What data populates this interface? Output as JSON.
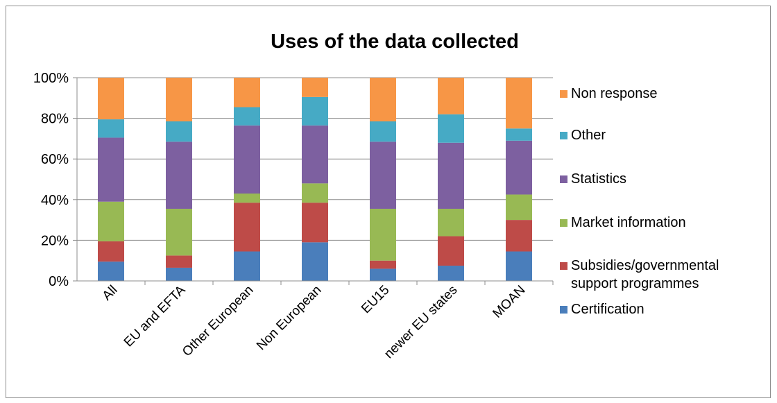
{
  "chart_data": {
    "type": "bar",
    "stacked": true,
    "title": "Uses of the data collected",
    "xlabel": "",
    "ylabel": "",
    "ylim": [
      0,
      100
    ],
    "yticks": [
      "0%",
      "20%",
      "40%",
      "60%",
      "80%",
      "100%"
    ],
    "grid": true,
    "legend_position": "right",
    "categories": [
      "All",
      "EU and EFTA",
      "Other European",
      "Non European",
      "EU15",
      "newer EU states",
      "MOAN"
    ],
    "series": [
      {
        "name": "Certification",
        "color": "#4a7ebb",
        "values": [
          9.5,
          6.5,
          14.5,
          19,
          6,
          7.5,
          14.5
        ]
      },
      {
        "name": "Subsidies/governmental support programmes",
        "color": "#be4b48",
        "values": [
          10,
          6,
          24,
          19.5,
          4,
          14.5,
          15.5
        ]
      },
      {
        "name": "Market information",
        "color": "#98b954",
        "values": [
          19.5,
          23,
          4.5,
          9.5,
          25.5,
          13.5,
          12.5
        ]
      },
      {
        "name": "Statistics",
        "color": "#7d60a0",
        "values": [
          31.5,
          33,
          33.5,
          28.5,
          33,
          32.5,
          26.5
        ]
      },
      {
        "name": "Other",
        "color": "#46aac5",
        "values": [
          9,
          10,
          9,
          14,
          10,
          14,
          6
        ]
      },
      {
        "name": "Non response",
        "color": "#f79646",
        "values": [
          20.5,
          21.5,
          14.5,
          9.5,
          21.5,
          18,
          25
        ]
      }
    ]
  }
}
